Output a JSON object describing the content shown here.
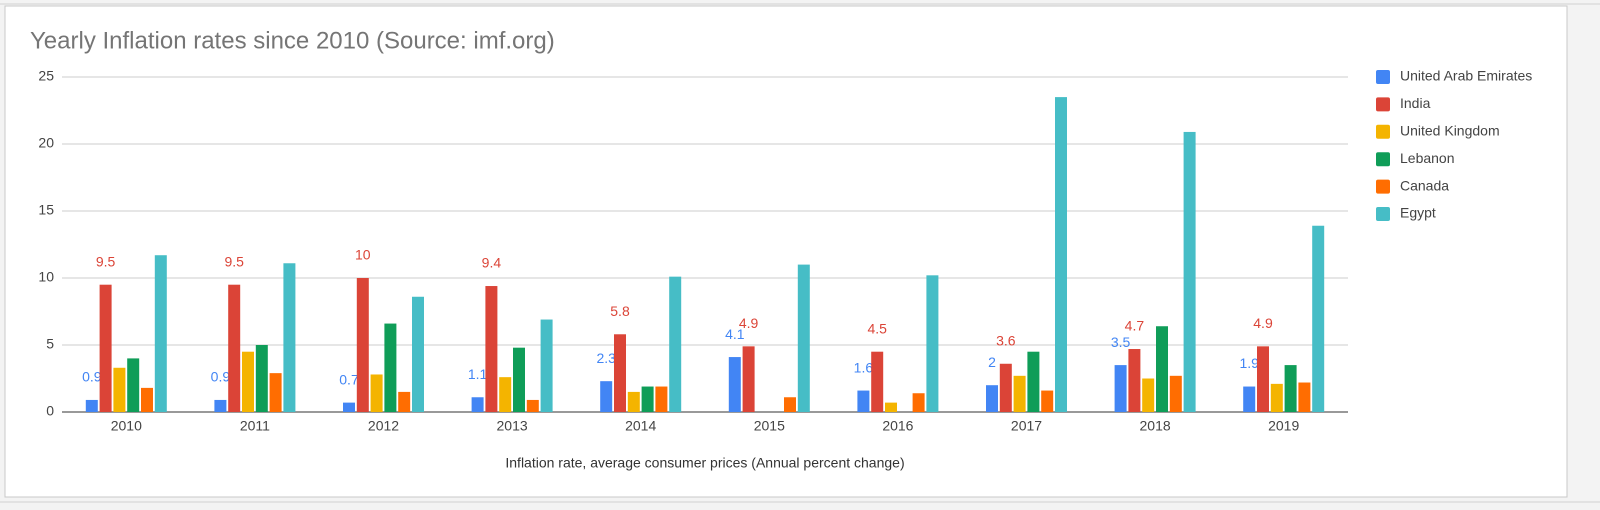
{
  "chart_data": {
    "type": "bar",
    "title": "Yearly Inflation rates since 2010 (Source: imf.org)",
    "x_label": "Inflation rate, average consumer prices (Annual percent change)",
    "categories": [
      "2010",
      "2011",
      "2012",
      "2013",
      "2014",
      "2015",
      "2016",
      "2017",
      "2018",
      "2019"
    ],
    "series": [
      {
        "name": "United Arab Emirates",
        "color": "#4285f4",
        "data_labels": true,
        "values": [
          0.9,
          0.9,
          0.7,
          1.1,
          2.3,
          4.1,
          1.6,
          2,
          3.5,
          1.9
        ]
      },
      {
        "name": "India",
        "color": "#db4437",
        "data_labels": true,
        "values": [
          9.5,
          9.5,
          10,
          9.4,
          5.8,
          4.9,
          4.5,
          3.6,
          4.7,
          4.9
        ]
      },
      {
        "name": "United Kingdom",
        "color": "#f4b400",
        "values": [
          3.3,
          4.5,
          2.8,
          2.6,
          1.5,
          0,
          0.7,
          2.7,
          2.5,
          2.1
        ]
      },
      {
        "name": "Lebanon",
        "color": "#0f9d58",
        "values": [
          4.0,
          5.0,
          6.6,
          4.8,
          1.9,
          null,
          null,
          4.5,
          6.4,
          3.5
        ]
      },
      {
        "name": "Canada",
        "color": "#ff6d01",
        "values": [
          1.8,
          2.9,
          1.5,
          0.9,
          1.9,
          1.1,
          1.4,
          1.6,
          2.7,
          2.2
        ]
      },
      {
        "name": "Egypt",
        "color": "#46bdc6",
        "values": [
          11.7,
          11.1,
          8.6,
          6.9,
          10.1,
          11.0,
          10.2,
          23.5,
          20.9,
          13.9
        ]
      }
    ],
    "ylim": [
      0,
      25
    ],
    "yticks": [
      0,
      5,
      10,
      15,
      20,
      25
    ],
    "grid": true,
    "legend": "right"
  }
}
